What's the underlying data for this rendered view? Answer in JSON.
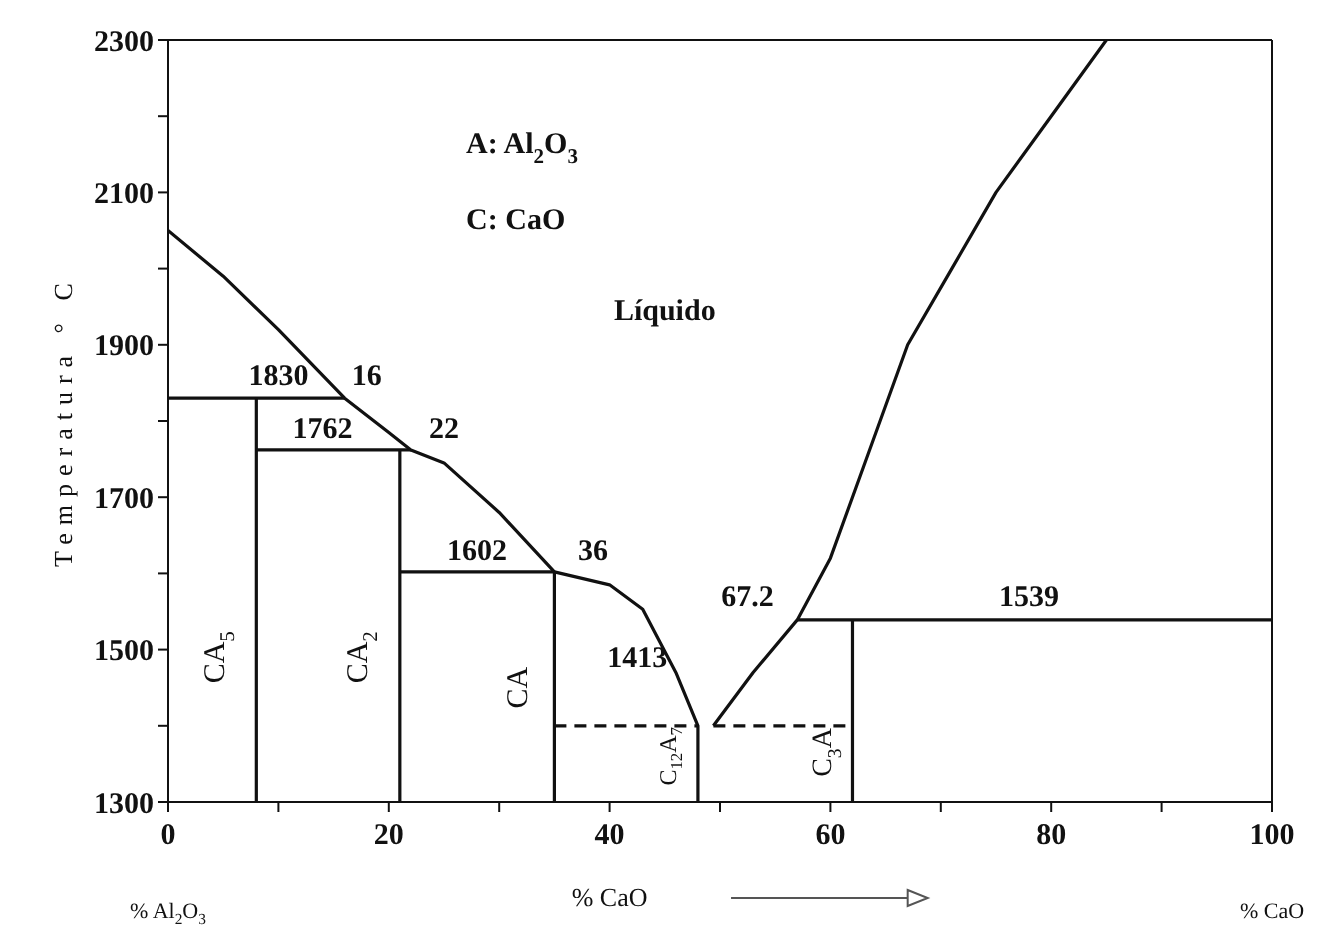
{
  "chart_data": {
    "type": "line",
    "ylabel": "Temperatura ° C",
    "xlabel": "% CaO",
    "xlim": [
      0,
      100
    ],
    "ylim": [
      1300,
      2300
    ],
    "xticks": [
      0,
      {
        "value": 10,
        "label": null
      },
      20,
      {
        "value": 30,
        "label": null
      },
      40,
      {
        "value": 50,
        "label": null
      },
      60,
      {
        "value": 70,
        "label": null
      },
      80,
      {
        "value": 90,
        "label": null
      },
      100
    ],
    "yticks": [
      1300,
      {
        "value": 1400,
        "label": null
      },
      1500,
      {
        "value": 1600,
        "label": null
      },
      1700,
      {
        "value": 1800,
        "label": null
      },
      1900,
      {
        "value": 2000,
        "label": null
      },
      2100,
      {
        "value": 2200,
        "label": null
      },
      2300
    ],
    "marker": "none",
    "line_style": "solid",
    "series": [
      {
        "color": "#111111",
        "x": [
          0,
          5,
          10,
          16,
          20,
          22,
          25,
          30,
          35,
          40,
          43,
          46,
          48,
          48
        ],
        "values": [
          2050,
          1990,
          1920,
          1830,
          1785,
          1762,
          1745,
          1680,
          1602,
          1585,
          1553,
          1470,
          1400,
          1300
        ]
      },
      {
        "color": "#111111",
        "x": [
          49.4,
          53,
          57,
          60,
          63,
          67,
          71,
          75,
          80,
          85
        ],
        "values": [
          1400,
          1470,
          1539,
          1620,
          1740,
          1900,
          2000,
          2100,
          2200,
          2300
        ]
      },
      {
        "color": "#111111",
        "x": [
          0,
          16
        ],
        "values": [
          1830,
          1830
        ]
      },
      {
        "color": "#111111",
        "x": [
          8,
          8
        ],
        "values": [
          1830,
          1300
        ]
      },
      {
        "color": "#111111",
        "x": [
          8,
          22
        ],
        "values": [
          1762,
          1762
        ]
      },
      {
        "color": "#111111",
        "x": [
          21,
          21
        ],
        "values": [
          1762,
          1300
        ]
      },
      {
        "color": "#111111",
        "x": [
          21,
          35,
          35
        ],
        "values": [
          1602,
          1602,
          1300
        ]
      },
      {
        "color": "#111111",
        "x": [
          57,
          100
        ],
        "values": [
          1539,
          1539
        ]
      },
      {
        "color": "#111111",
        "x": [
          62,
          62
        ],
        "values": [
          1539,
          1300
        ]
      },
      {
        "color": "#111111",
        "x": [
          35,
          48
        ],
        "values": [
          1400,
          1400
        ],
        "line_style": "dashed"
      },
      {
        "color": "#111111",
        "x": [
          49.4,
          62
        ],
        "values": [
          1400,
          1400
        ],
        "line_style": "dashed"
      }
    ],
    "annotations": [
      "A: Al$_{2}$O$_{3}$",
      "C: CaO",
      "% Al$_{2}$O$_{3}$",
      "% CaO",
      "Líquido",
      "1830",
      "16",
      "1762",
      "22",
      "1602",
      "36",
      "1413",
      "67.2",
      "1539",
      "CA$_{5}$",
      "CA$_{2}$",
      "CA",
      "C$_{12}$A$_{7}$",
      "C$_{3}$A"
    ]
  }
}
